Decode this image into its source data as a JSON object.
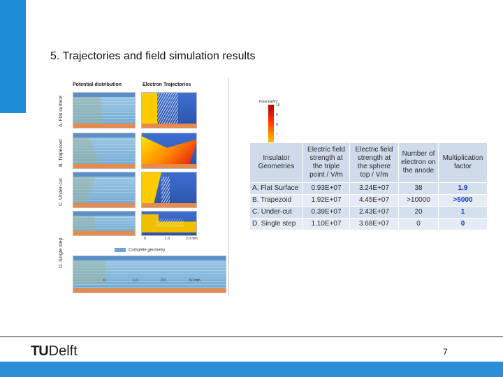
{
  "slide": {
    "title": "5. Trajectories and field simulation results",
    "page_number": "7",
    "logo": {
      "tu": "TU",
      "delft": "Delft"
    }
  },
  "figure": {
    "headers": {
      "potential": "Potential distribution",
      "electron": "Electron Trajectories"
    },
    "rows": [
      {
        "label": "A. Flat surface"
      },
      {
        "label": "B. Trapezoid"
      },
      {
        "label": "C. Under-cut"
      },
      {
        "label": "D. Single step"
      }
    ],
    "colorbar": {
      "label": "Potential/kV",
      "ticks": [
        "10",
        "9",
        "8",
        "7",
        "6",
        "5",
        "4",
        "3",
        "2",
        "1",
        "0"
      ]
    },
    "axis_small": [
      "0",
      "1.0",
      "2.0 mm"
    ],
    "axis_large": [
      "0",
      "1.0",
      "2.0",
      "3.0 mm"
    ],
    "complete_geometry": "Complete geometry"
  },
  "table": {
    "headers": [
      "Insulator Geometries",
      "Electric field strength at the triple point / V/m",
      "Electric field strength at the sphere top / V/m",
      "Number of electron on the anode",
      "Multiplication factor"
    ],
    "rows": [
      {
        "geometry": "A. Flat Surface",
        "triple": "0.93E+07",
        "sphere": "3.24E+07",
        "electrons": "38",
        "factor": "1.9"
      },
      {
        "geometry": "B. Trapezoid",
        "triple": "1.92E+07",
        "sphere": "4.45E+07",
        "electrons": ">10000",
        "factor": ">5000"
      },
      {
        "geometry": "C. Under-cut",
        "triple": "0.39E+07",
        "sphere": "2.43E+07",
        "electrons": "20",
        "factor": "1"
      },
      {
        "geometry": "D. Single step",
        "triple": "1.10E+07",
        "sphere": "3.68E+07",
        "electrons": "0",
        "factor": "0"
      }
    ]
  },
  "colors": {
    "accent": "#2a8fd6",
    "factor_text": "#1333c8"
  }
}
